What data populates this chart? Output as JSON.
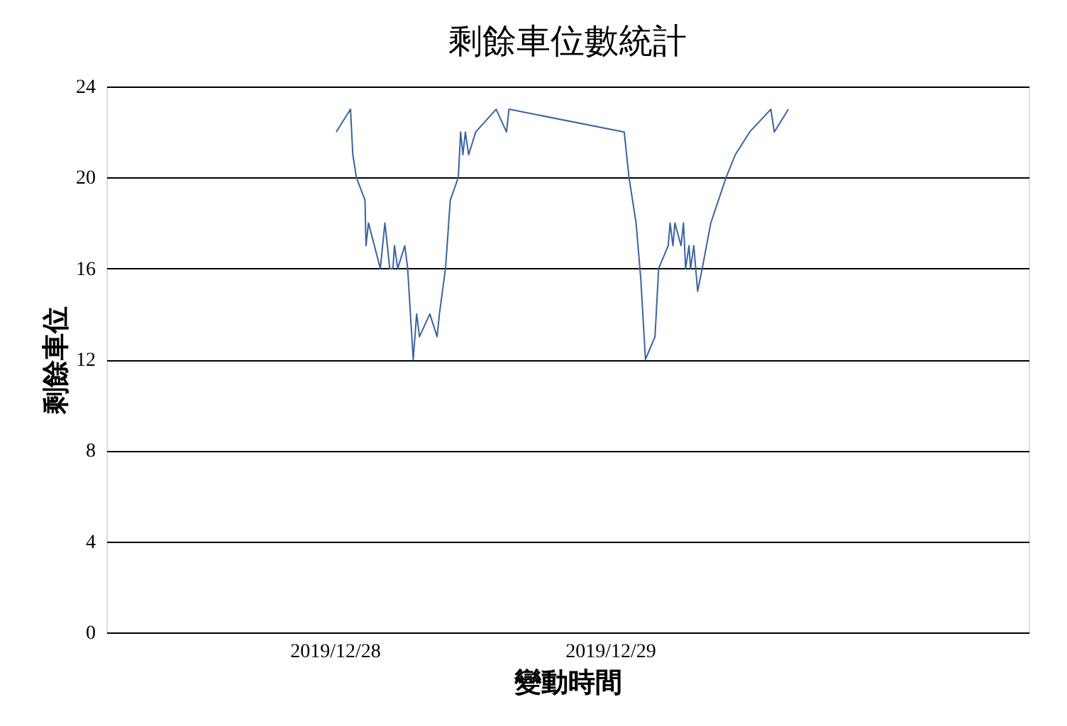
{
  "chart_data": {
    "type": "line",
    "title": "剩餘車位數統計",
    "xlabel": "變動時間",
    "ylabel": "剩餘車位",
    "x": [
      "2019-12-28T00:07",
      "2019-12-28T01:22",
      "2019-12-28T01:34",
      "2019-12-28T01:53",
      "2019-12-28T02:38",
      "2019-12-28T02:43",
      "2019-12-28T02:56",
      "2019-12-28T03:58",
      "2019-12-28T04:22",
      "2019-12-28T04:35",
      "2019-12-28T04:47",
      "2019-12-28T05:04",
      "2019-12-28T05:12",
      "2019-12-28T05:29",
      "2019-12-28T06:06",
      "2019-12-28T06:21",
      "2019-12-28T06:50",
      "2019-12-28T07:08",
      "2019-12-28T07:23",
      "2019-12-28T08:17",
      "2019-12-28T08:55",
      "2019-12-28T09:07",
      "2019-12-28T09:39",
      "2019-12-28T10:04",
      "2019-12-28T10:46",
      "2019-12-28T10:58",
      "2019-12-28T11:10",
      "2019-12-28T11:23",
      "2019-12-28T11:40",
      "2019-12-28T12:17",
      "2019-12-28T14:04",
      "2019-12-28T14:58",
      "2019-12-28T15:11",
      "2019-12-29T01:14",
      "2019-12-29T01:39",
      "2019-12-29T02:16",
      "2019-12-29T02:41",
      "2019-12-29T03:05",
      "2019-12-29T03:55",
      "2019-12-29T04:14",
      "2019-12-29T05:04",
      "2019-12-29T05:14",
      "2019-12-29T05:29",
      "2019-12-29T05:39",
      "2019-12-29T06:11",
      "2019-12-29T06:24",
      "2019-12-29T06:35",
      "2019-12-29T06:53",
      "2019-12-29T07:01",
      "2019-12-29T07:18",
      "2019-12-29T07:38",
      "2019-12-29T08:02",
      "2019-12-29T08:47",
      "2019-12-29T10:07",
      "2019-12-29T10:55",
      "2019-12-29T12:10",
      "2019-12-29T14:01",
      "2019-12-29T14:19",
      "2019-12-29T15:33"
    ],
    "series": [
      {
        "color": "#3a64a0",
        "values": [
          22,
          23,
          21,
          20,
          19,
          17,
          18,
          16,
          18,
          17,
          16,
          16,
          17,
          16,
          17,
          16,
          12,
          14,
          13,
          14,
          13,
          14,
          16,
          19,
          20,
          22,
          21,
          22,
          21,
          22,
          23,
          22,
          23,
          22,
          20,
          18,
          15.5,
          12,
          13,
          16,
          17,
          18,
          17,
          18,
          17,
          18,
          16,
          17,
          16,
          17,
          15,
          16,
          18,
          20,
          21,
          22,
          23,
          22,
          23
        ]
      }
    ],
    "xlim": [
      "2019-12-27T04:05",
      "2019-12-30T12:30"
    ],
    "xticks": [
      {
        "value": "2019-12-28",
        "label": "2019/12/28"
      },
      {
        "value": "2019-12-29",
        "label": "2019/12/29"
      }
    ],
    "ylim": [
      0,
      24
    ],
    "yticks": [
      0,
      4,
      8,
      12,
      16,
      20,
      24
    ],
    "grid": "y",
    "marker": "none",
    "line_style": "solid"
  }
}
